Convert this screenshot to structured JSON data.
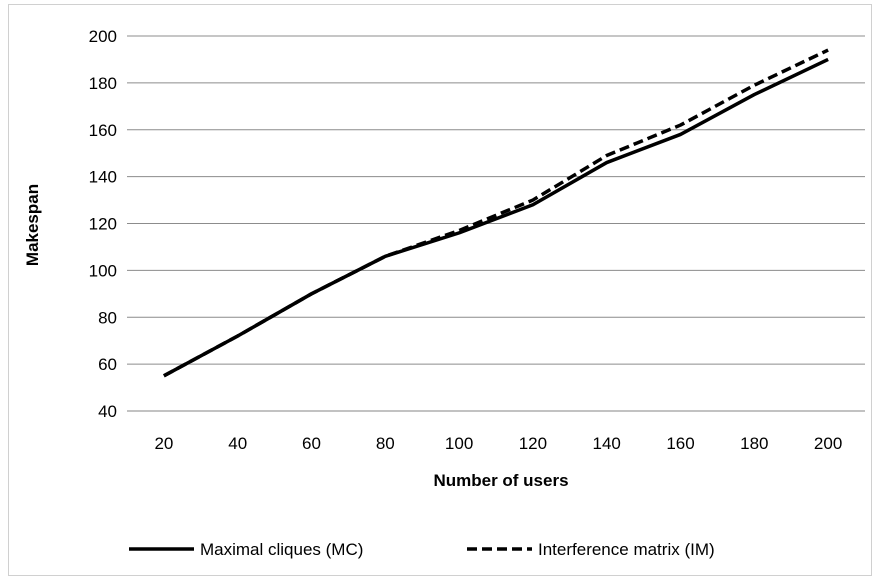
{
  "chart_data": {
    "type": "line",
    "xlabel": "Number of users",
    "ylabel": "Makespan",
    "categories": [
      "20",
      "40",
      "60",
      "80",
      "100",
      "120",
      "140",
      "160",
      "180",
      "200"
    ],
    "ylim": [
      40,
      200
    ],
    "yticks": [
      40,
      60,
      80,
      100,
      120,
      140,
      160,
      180,
      200
    ],
    "grid": true,
    "legend": "bottom",
    "series": [
      {
        "name": "Maximal cliques (MC)",
        "style": "solid",
        "color": "#000000",
        "values": [
          55,
          72,
          90,
          106,
          116,
          128,
          146,
          158,
          175,
          190
        ]
      },
      {
        "name": "Interference matrix (IM)",
        "style": "dashed",
        "color": "#000000",
        "values": [
          55,
          72,
          90,
          106,
          117,
          130,
          149,
          162,
          179,
          194
        ]
      }
    ]
  }
}
